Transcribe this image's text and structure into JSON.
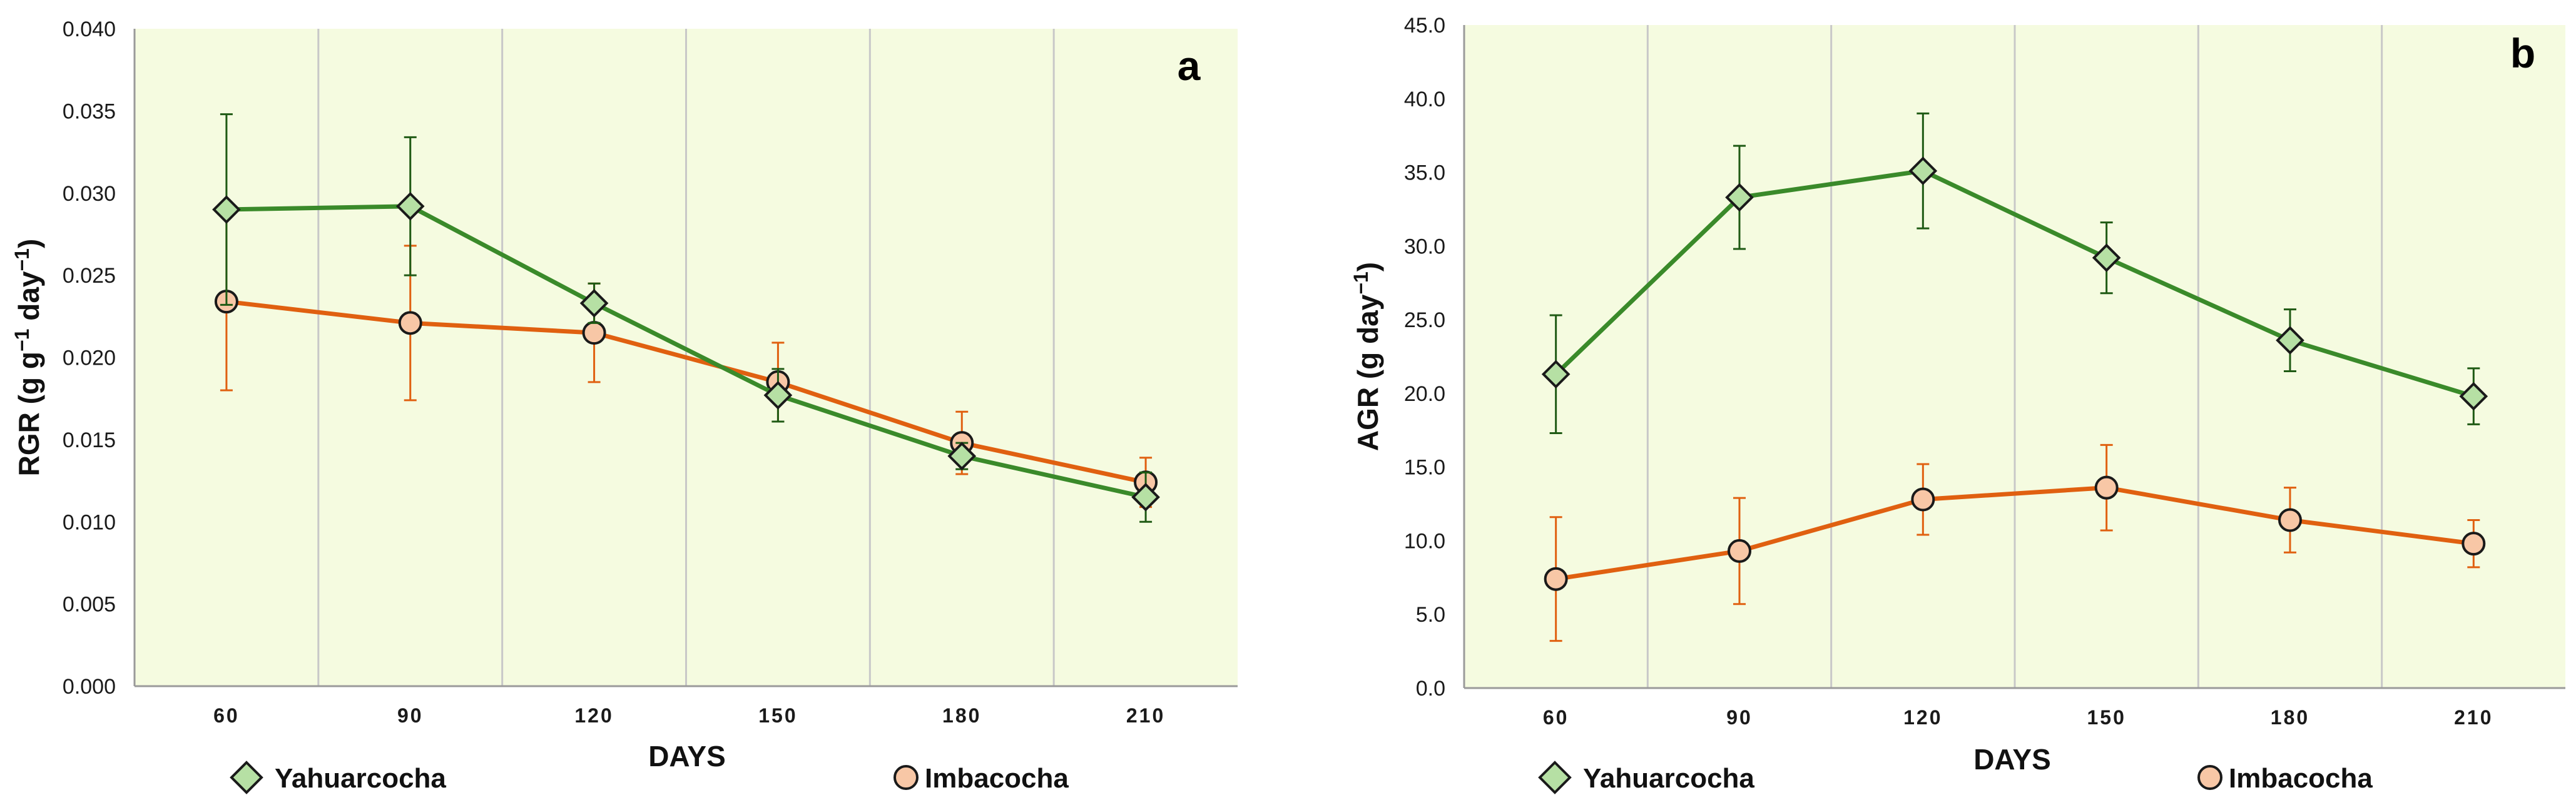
{
  "colors": {
    "plot_bg": "#f5fbe0",
    "grid": "#c8c8c8",
    "axis": "#9a9a9a",
    "series1_line": "#3a8a2a",
    "series1_err": "#1f5a14",
    "series1_fill": "#b6e0a4",
    "series2_line": "#e06010",
    "series2_err": "#e06010",
    "series2_fill": "#f8c7a6",
    "marker_edge": "#1a1a1a"
  },
  "chart_data": [
    {
      "type": "line",
      "panel": "a",
      "title": "",
      "xlabel": "DAYS",
      "ylabel_main": "RGR (g g",
      "ylabel_mid": " day",
      "ylabel_end": ")",
      "ylabel_sup": "−1",
      "x": [
        60,
        90,
        120,
        150,
        180,
        210
      ],
      "ylim": [
        0,
        0.04
      ],
      "yticks": [
        0.0,
        0.005,
        0.01,
        0.015,
        0.02,
        0.025,
        0.03,
        0.035,
        0.04
      ],
      "ytick_labels": [
        "0.000",
        "0.005",
        "0.010",
        "0.015",
        "0.020",
        "0.025",
        "0.030",
        "0.035",
        "0.040"
      ],
      "grid": "vertical",
      "series": [
        {
          "name": "Yahuarcocha",
          "marker": "diamond",
          "values": [
            0.029,
            0.0292,
            0.0233,
            0.0177,
            0.014,
            0.0115
          ],
          "errors": [
            0.0058,
            0.0042,
            0.0012,
            0.0016,
            0.0008,
            0.0015
          ]
        },
        {
          "name": "Imbacocha",
          "marker": "circle",
          "values": [
            0.0234,
            0.0221,
            0.0215,
            0.0185,
            0.0148,
            0.0124
          ],
          "errors": [
            0.0054,
            0.0047,
            0.003,
            0.0024,
            0.0019,
            0.0015
          ]
        }
      ]
    },
    {
      "type": "line",
      "panel": "b",
      "title": "",
      "xlabel": "DAYS",
      "ylabel_main": "AGR (g day",
      "ylabel_mid": "",
      "ylabel_end": ")",
      "ylabel_sup": "−1",
      "x": [
        60,
        90,
        120,
        150,
        180,
        210
      ],
      "ylim": [
        0,
        45
      ],
      "yticks": [
        0,
        5,
        10,
        15,
        20,
        25,
        30,
        35,
        40,
        45
      ],
      "ytick_labels": [
        "0.0",
        "5.0",
        "10.0",
        "15.0",
        "20.0",
        "25.0",
        "30.0",
        "35.0",
        "40.0",
        "45.0"
      ],
      "grid": "vertical",
      "series": [
        {
          "name": "Yahuarcocha",
          "marker": "diamond",
          "values": [
            21.3,
            33.3,
            35.1,
            29.2,
            23.6,
            19.8
          ],
          "errors": [
            4.0,
            3.5,
            3.9,
            2.4,
            2.1,
            1.9
          ]
        },
        {
          "name": "Imbacocha",
          "marker": "circle",
          "values": [
            7.4,
            9.3,
            12.8,
            13.6,
            11.4,
            9.8
          ],
          "errors": [
            4.2,
            3.6,
            2.4,
            2.9,
            2.2,
            1.6
          ]
        }
      ]
    }
  ]
}
